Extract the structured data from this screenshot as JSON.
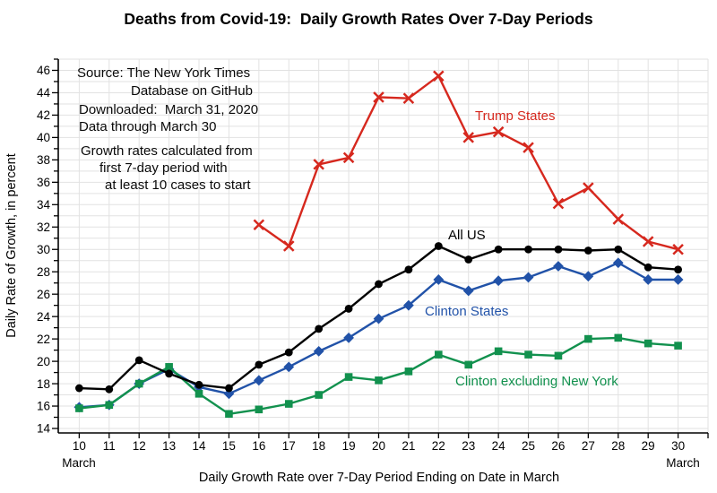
{
  "annotation_lines": [
    "Source: The New York Times",
    "Database on GitHub",
    "Downloaded:  March 31, 2020",
    "Data through March 30",
    "Growth rates calculated from",
    "first 7-day period with",
    "at least 10 cases to start"
  ],
  "x_axis_months": {
    "left": "March",
    "right": "March"
  },
  "chart_data": {
    "type": "line",
    "title": "Deaths from Covid-19:  Daily Growth Rates Over 7-Day Periods",
    "x_label": "Daily Growth Rate over 7-Day Period Ending on Date in March",
    "y_label": "Daily Rate of Growth, in percent",
    "x": [
      10,
      11,
      12,
      13,
      14,
      15,
      16,
      17,
      18,
      19,
      20,
      21,
      22,
      23,
      24,
      25,
      26,
      27,
      28,
      29,
      30
    ],
    "xlim": [
      9.3,
      31.0
    ],
    "ylim": [
      13.6,
      47.0
    ],
    "y_tick_labels": [
      14,
      16,
      18,
      20,
      22,
      24,
      26,
      28,
      30,
      32,
      34,
      36,
      38,
      40,
      42,
      44,
      46
    ],
    "y_minor_tick_step": 1,
    "grid": true,
    "grid_color": "#e2e2e2",
    "axis_color": "#000000",
    "legend_position": "inline-labels",
    "series": [
      {
        "name": "Trump States",
        "color": "#d6281e",
        "marker": "x",
        "values": [
          null,
          null,
          null,
          null,
          null,
          null,
          32.2,
          30.3,
          37.6,
          38.2,
          43.6,
          43.5,
          45.5,
          40.0,
          40.5,
          39.1,
          34.1,
          35.5,
          32.7,
          30.7,
          30.0
        ]
      },
      {
        "name": "Clinton States",
        "color": "#2152a8",
        "marker": "diamond",
        "values": [
          15.9,
          16.1,
          18.0,
          19.3,
          17.7,
          17.1,
          18.3,
          19.5,
          20.9,
          22.1,
          23.8,
          25.0,
          27.3,
          26.3,
          27.2,
          27.5,
          28.5,
          27.6,
          28.8,
          27.3,
          27.3
        ]
      },
      {
        "name": "Clinton excluding New York",
        "color": "#12914e",
        "marker": "square",
        "values": [
          15.8,
          16.1,
          18.0,
          19.5,
          17.1,
          15.3,
          15.7,
          16.2,
          17.0,
          18.6,
          18.3,
          19.1,
          20.6,
          19.7,
          20.9,
          20.6,
          20.5,
          22.0,
          22.1,
          21.6,
          21.4
        ]
      },
      {
        "name": "All US",
        "color": "#000000",
        "marker": "circle",
        "values": [
          17.6,
          17.5,
          20.1,
          18.9,
          17.9,
          17.6,
          19.7,
          20.8,
          22.9,
          24.7,
          26.9,
          28.2,
          30.3,
          29.1,
          30.0,
          30.0,
          30.0,
          29.9,
          30.0,
          28.4,
          28.2
        ]
      }
    ]
  }
}
